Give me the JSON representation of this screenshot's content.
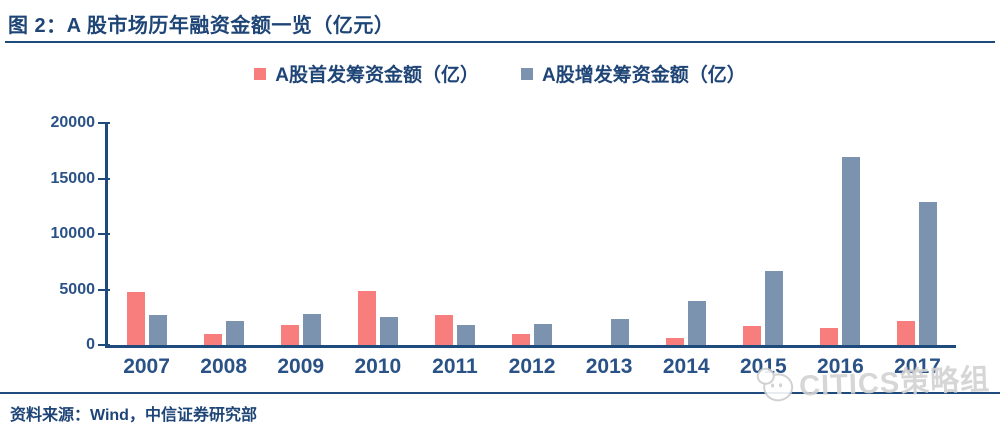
{
  "title": "图 2：A 股市场历年融资金额一览（亿元）",
  "legend": {
    "items": [
      {
        "label": "A股首发筹资金额（亿）",
        "color": "#F87E7E"
      },
      {
        "label": "A股增发筹资金额（亿）",
        "color": "#7B93AF"
      }
    ]
  },
  "footer": {
    "source": "资料来源：Wind，中信证券研究部"
  },
  "watermark": {
    "text": "CITICS策略组"
  },
  "colors": {
    "navy_text": "#1F4577",
    "axis": "#1F4A7C",
    "ipo_bar": "#F87E7E",
    "seo_bar": "#7B93AF",
    "watermark_gray": "#D2D2D2"
  },
  "chart_data": {
    "type": "bar",
    "title": "图 2：A 股市场历年融资金额一览（亿元）",
    "categories": [
      "2007",
      "2008",
      "2009",
      "2010",
      "2011",
      "2012",
      "2013",
      "2014",
      "2015",
      "2016",
      "2017"
    ],
    "series": [
      {
        "name": "A股首发筹资金额（亿）",
        "color": "#F87E7E",
        "values": [
          4800,
          1000,
          1800,
          4900,
          2700,
          1000,
          0,
          650,
          1700,
          1500,
          2200
        ]
      },
      {
        "name": "A股增发筹资金额（亿）",
        "color": "#7B93AF",
        "values": [
          2700,
          2200,
          2800,
          2500,
          1800,
          1900,
          2300,
          4000,
          6700,
          16900,
          12900
        ]
      }
    ],
    "xlabel": "",
    "ylabel": "",
    "ylim": [
      0,
      20000
    ],
    "yticks": [
      0,
      5000,
      10000,
      15000,
      20000
    ],
    "grid": false,
    "legend_position": "top-center"
  }
}
